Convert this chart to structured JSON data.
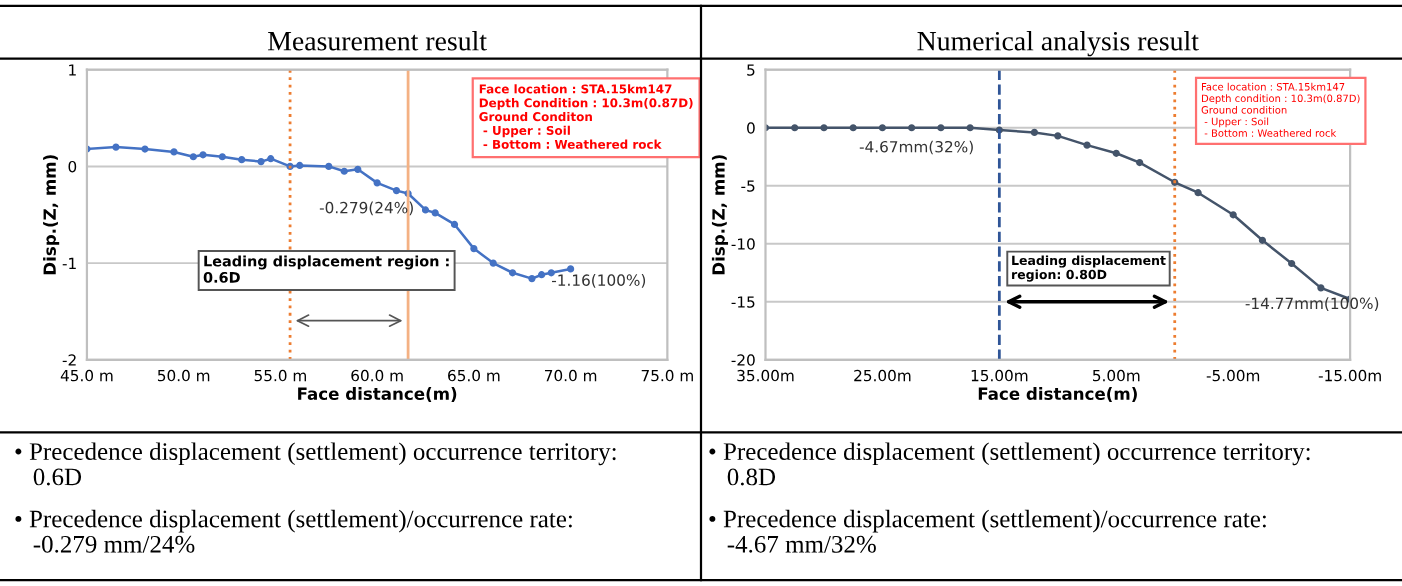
{
  "chart_data": [
    {
      "type": "line",
      "title": "Measurement result",
      "xlabel": "Face distance(m)",
      "ylabel": "Disp.(Z, mm)",
      "x": [
        45,
        46.5,
        48,
        49.5,
        50.5,
        51,
        52,
        53,
        54,
        54.5,
        55.5,
        56,
        57.5,
        58.3,
        59,
        60,
        61,
        61.6,
        62.5,
        63,
        64,
        65,
        66,
        67,
        68,
        68.5,
        69,
        70
      ],
      "series": [
        {
          "color": "#4472c4",
          "values": [
            0.18,
            0.2,
            0.18,
            0.15,
            0.1,
            0.12,
            0.1,
            0.07,
            0.05,
            0.08,
            0.0,
            0.01,
            0.0,
            -0.05,
            -0.03,
            -0.17,
            -0.25,
            -0.28,
            -0.45,
            -0.48,
            -0.6,
            -0.85,
            -1.0,
            -1.1,
            -1.16,
            -1.12,
            -1.1,
            -1.06
          ]
        }
      ],
      "marker": "circle",
      "line_style": "solid",
      "grid": "y",
      "xlim": [
        45,
        75
      ],
      "xticks": [
        {
          "value": 45,
          "label": "45.0 m"
        },
        {
          "value": 50,
          "label": "50.0 m"
        },
        {
          "value": 55,
          "label": "55.0 m"
        },
        {
          "value": 60,
          "label": "60.0 m"
        },
        {
          "value": 65,
          "label": "65.0 m"
        },
        {
          "value": 70,
          "label": "70.0 m"
        },
        {
          "value": 75,
          "label": "75.0 m"
        }
      ],
      "ylim": [
        -2,
        1
      ],
      "yticks": [
        -2,
        -1,
        0,
        1
      ],
      "ref_lines": [
        {
          "axis": "x",
          "value": 55.5,
          "color": "#ed7d31",
          "line_style": "dotted"
        },
        {
          "axis": "x",
          "value": 61.6,
          "color": "#f4b183",
          "line_style": "solid"
        }
      ],
      "annotations": [
        "Face location : STA.15km147\nDepth Condition : 10.3m(0.87D)\nGround Conditon\n - Upper : Soil\n - Bottom : Weathered rock",
        "Leading displacement region :\n0.6D",
        "-0.279(24%)",
        "-1.16(100%)",
        "• Precedence displacement (settlement) occurrence territory:\n   0.6D",
        "• Precedence displacement (settlement)/occurrence rate:\n   -0.279 mm/24%"
      ]
    },
    {
      "type": "line",
      "title": "Numerical analysis result",
      "xlabel": "Face distance(m)",
      "ylabel": "Disp.(Z, mm)",
      "x": [
        35,
        32.5,
        30,
        27.5,
        25,
        22.5,
        20,
        17.5,
        15,
        12,
        10,
        7.5,
        5,
        3,
        0,
        -2,
        -5,
        -7.5,
        -10,
        -12.5,
        -15
      ],
      "series": [
        {
          "color": "#44546a",
          "values": [
            0,
            0,
            0,
            0,
            0,
            0,
            0,
            0,
            -0.2,
            -0.4,
            -0.7,
            -1.5,
            -2.2,
            -3,
            -4.7,
            -5.6,
            -7.5,
            -9.7,
            -11.7,
            -13.8,
            -14.77
          ]
        }
      ],
      "marker": "circle",
      "line_style": "solid",
      "grid": "y",
      "xlim": [
        35,
        -15
      ],
      "xticks": [
        {
          "value": 35,
          "label": "35.00m"
        },
        {
          "value": 25,
          "label": "25.00m"
        },
        {
          "value": 15,
          "label": "15.00m"
        },
        {
          "value": 5,
          "label": "5.00m"
        },
        {
          "value": -5,
          "label": "-5.00m"
        },
        {
          "value": -15,
          "label": "-15.00m"
        }
      ],
      "ylim": [
        -20,
        5
      ],
      "yticks": [
        -20,
        -15,
        -10,
        -5,
        0,
        5
      ],
      "ref_lines": [
        {
          "axis": "x",
          "value": 15,
          "color": "#2f5597",
          "line_style": "dashed"
        },
        {
          "axis": "x",
          "value": 0,
          "color": "#ed7d31",
          "line_style": "dotted"
        }
      ],
      "annotations": [
        "Face location : STA.15km147\nDepth condition : 10.3m(0.87D)\nGround condition\n - Upper : Soil\n - Bottom : Weathered rock",
        "Leading displacement\nregion: 0.80D",
        "-4.67mm(32%)",
        "-14.77mm(100%)",
        "• Precedence displacement (settlement) occurrence territory:\n   0.8D",
        "• Precedence displacement (settlement)/occurrence rate:\n   -4.67 mm/32%"
      ]
    }
  ]
}
